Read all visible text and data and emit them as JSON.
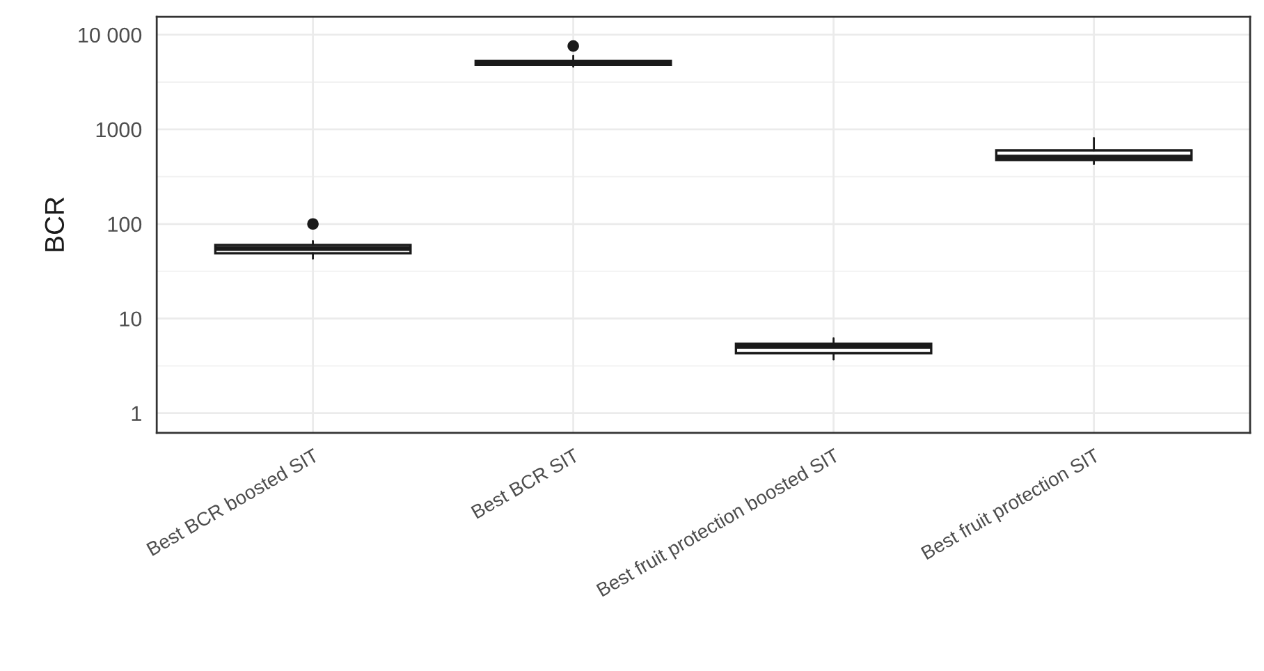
{
  "chart_data": {
    "type": "box",
    "ylabel": "BCR",
    "categories": [
      "Best BCR boosted SIT",
      "Best BCR SIT",
      "Best fruit protection boosted SIT",
      "Best fruit protection SIT"
    ],
    "boxes": [
      {
        "low": 43,
        "q1": 49,
        "median": 55,
        "q3": 60,
        "high": 66,
        "outliers": [
          100
        ]
      },
      {
        "low": 4600,
        "q1": 4800,
        "median": 5080,
        "q3": 5300,
        "high": 6000,
        "outliers": [
          7600
        ]
      },
      {
        "low": 3.7,
        "q1": 4.3,
        "median": 5.1,
        "q3": 5.4,
        "high": 6.2
      },
      {
        "low": 430,
        "q1": 475,
        "median": 510,
        "q3": 600,
        "high": 810
      }
    ],
    "log": "y",
    "ylim": [
      0.62,
      15500
    ],
    "yticks": [
      1,
      10,
      100,
      1000,
      {
        "value": 10000,
        "label": "10 000"
      }
    ],
    "grid": true,
    "legend": false
  }
}
